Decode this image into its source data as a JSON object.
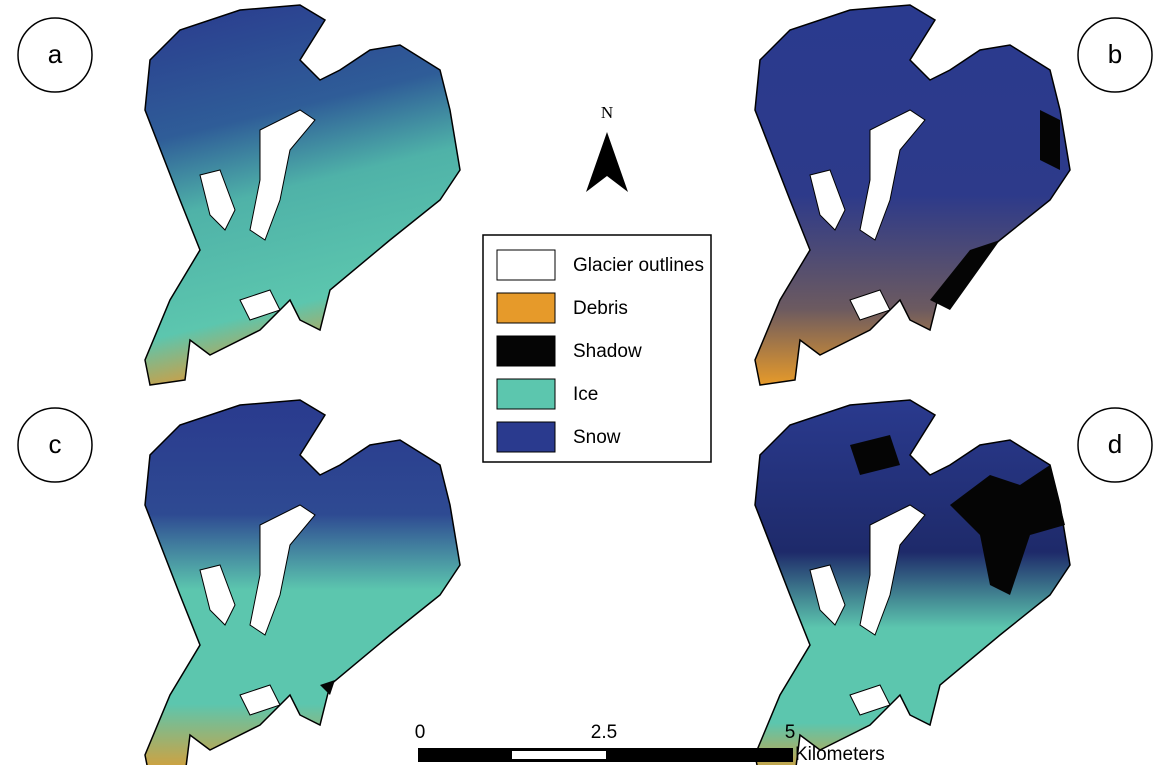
{
  "panels": [
    "a",
    "b",
    "c",
    "d"
  ],
  "north": "N",
  "legend": [
    {
      "label": "Glacier outlines",
      "color": "#ffffff"
    },
    {
      "label": "Debris",
      "color": "#e69a2a"
    },
    {
      "label": "Shadow",
      "color": "#050505"
    },
    {
      "label": "Ice",
      "color": "#5cc6ae"
    },
    {
      "label": "Snow",
      "color": "#2a3a8e"
    }
  ],
  "scale_bar": {
    "labels": [
      "0",
      "2.5",
      "5"
    ],
    "unit": "Kilometers"
  }
}
